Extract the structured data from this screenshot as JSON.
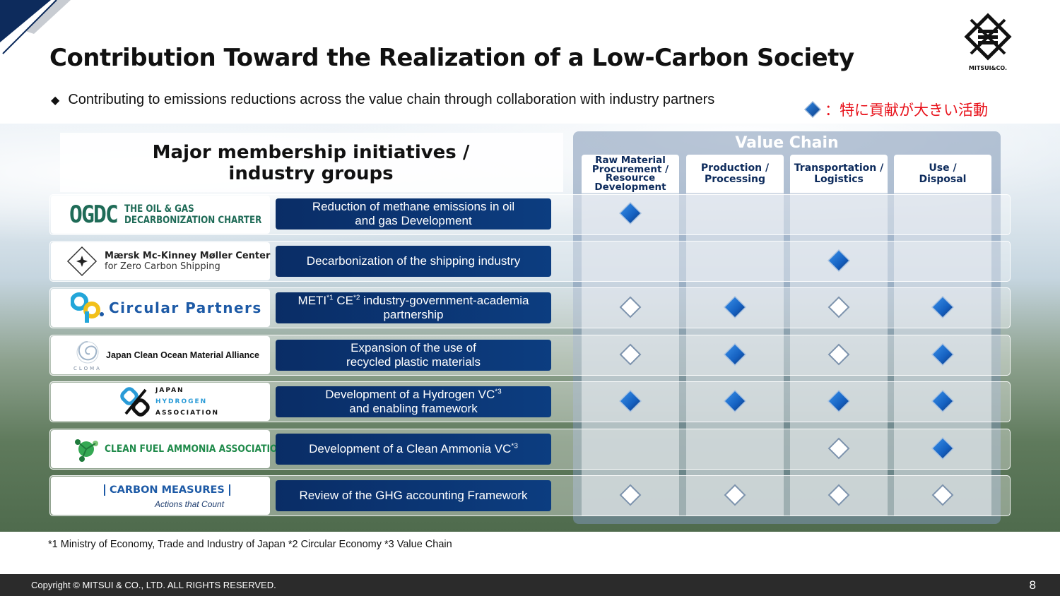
{
  "title": "Contribution Toward the Realization of a Low-Carbon Society",
  "logo": {
    "name": "MITSUI&CO."
  },
  "subtitle": "Contributing to emissions reductions across the value chain through collaboration with industry partners",
  "legend": {
    "label": "：特に貢献が大きい活動",
    "color": "#e8121b"
  },
  "table": {
    "left_header": [
      "Major membership initiatives /",
      "industry groups"
    ],
    "value_chain_title": "Value Chain",
    "columns": [
      [
        "Raw Material",
        "Procurement /",
        "Resource",
        "Development"
      ],
      [
        "Production /",
        "Processing"
      ],
      [
        "Transportation /",
        "Logistics"
      ],
      [
        "Use /",
        "Disposal"
      ]
    ],
    "rows": [
      {
        "logo": {
          "big": "OGDC",
          "lines": [
            "THE OIL & GAS",
            "DECARBONIZATION CHARTER"
          ]
        },
        "desc": [
          "Reduction of methane emissions in oil",
          "and gas Development"
        ],
        "marks": [
          "filled",
          "none",
          "none",
          "none"
        ]
      },
      {
        "logo": {
          "lines": [
            "Mærsk Mc-Kinney Møller Center",
            "for Zero Carbon Shipping"
          ]
        },
        "desc": [
          "Decarbonization of the shipping industry"
        ],
        "marks": [
          "none",
          "none",
          "filled",
          "none"
        ]
      },
      {
        "logo": {
          "text": "Circular Partners"
        },
        "desc": {
          "a": "METI",
          "s1": "*1",
          "b": " CE",
          "s2": "*2",
          "c": " industry-government-academia",
          "d": "partnership"
        },
        "marks": [
          "outline",
          "filled",
          "outline",
          "filled"
        ]
      },
      {
        "logo": {
          "text": "Japan Clean Ocean Material Alliance",
          "mark": "CLOMA"
        },
        "desc": [
          "Expansion of the use of",
          "recycled plastic materials"
        ],
        "marks": [
          "outline",
          "filled",
          "outline",
          "filled"
        ]
      },
      {
        "logo": {
          "lines": [
            "JAPAN",
            "HYDROGEN",
            "ASSOCIATION"
          ]
        },
        "desc": {
          "a": "Development of a Hydrogen VC",
          "s": "*3",
          "b": "and enabling framework"
        },
        "marks": [
          "filled",
          "filled",
          "filled",
          "filled"
        ]
      },
      {
        "logo": {
          "text": "CLEAN FUEL AMMONIA ASSOCIATION"
        },
        "desc": {
          "a": "Development of a Clean Ammonia VC",
          "s": "*3"
        },
        "marks": [
          "none",
          "none",
          "outline",
          "filled"
        ]
      },
      {
        "logo": {
          "text": "CARBON MEASURES",
          "tagline": "Actions that Count"
        },
        "desc": [
          "Review of the GHG accounting Framework"
        ],
        "marks": [
          "outline",
          "outline",
          "outline",
          "outline"
        ]
      }
    ]
  },
  "footnote": "*1 Ministry of Economy, Trade and Industry of Japan  *2 Circular Economy  *3 Value Chain",
  "footer": {
    "copyright": "Copyright © MITSUI & CO., LTD. ALL RIGHTS RESERVED.",
    "page": "8"
  },
  "colors": {
    "navy": "#0b3570",
    "diamond_fill": "#1a6fd6",
    "accent_red": "#e8121b"
  }
}
